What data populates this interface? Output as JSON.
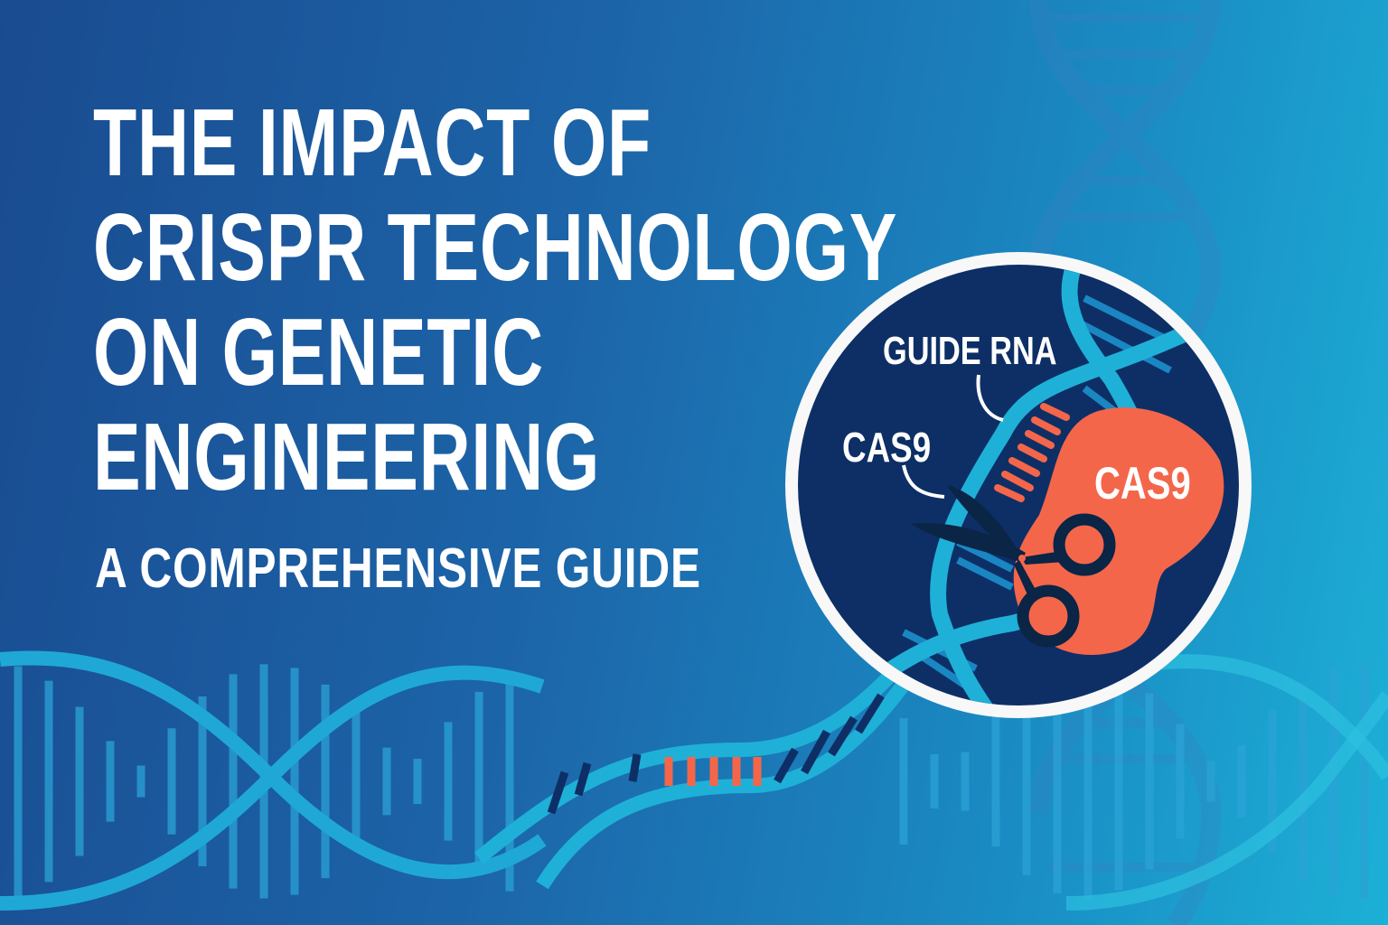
{
  "title": {
    "lines": [
      "THE IMPACT OF",
      "CRISPR TECHNOLOGY",
      "ON GENETIC",
      "ENGINEERING"
    ]
  },
  "subtitle": "A COMPREHENSIVE GUIDE",
  "diagram": {
    "guide_rna_label": "GUIDE RNA",
    "cas9_label": "CAS9",
    "cas9_protein_label": "CAS9"
  },
  "colors": {
    "background_dark": "#1a4b90",
    "background_light": "#1cb0d6",
    "dna_strand": "#1fb0d8",
    "circle_fill": "#0d2f66",
    "accent_orange": "#f4664a",
    "scissors": "#0a2545"
  },
  "icons": [
    "dna-helix-icon",
    "scissors-icon"
  ]
}
